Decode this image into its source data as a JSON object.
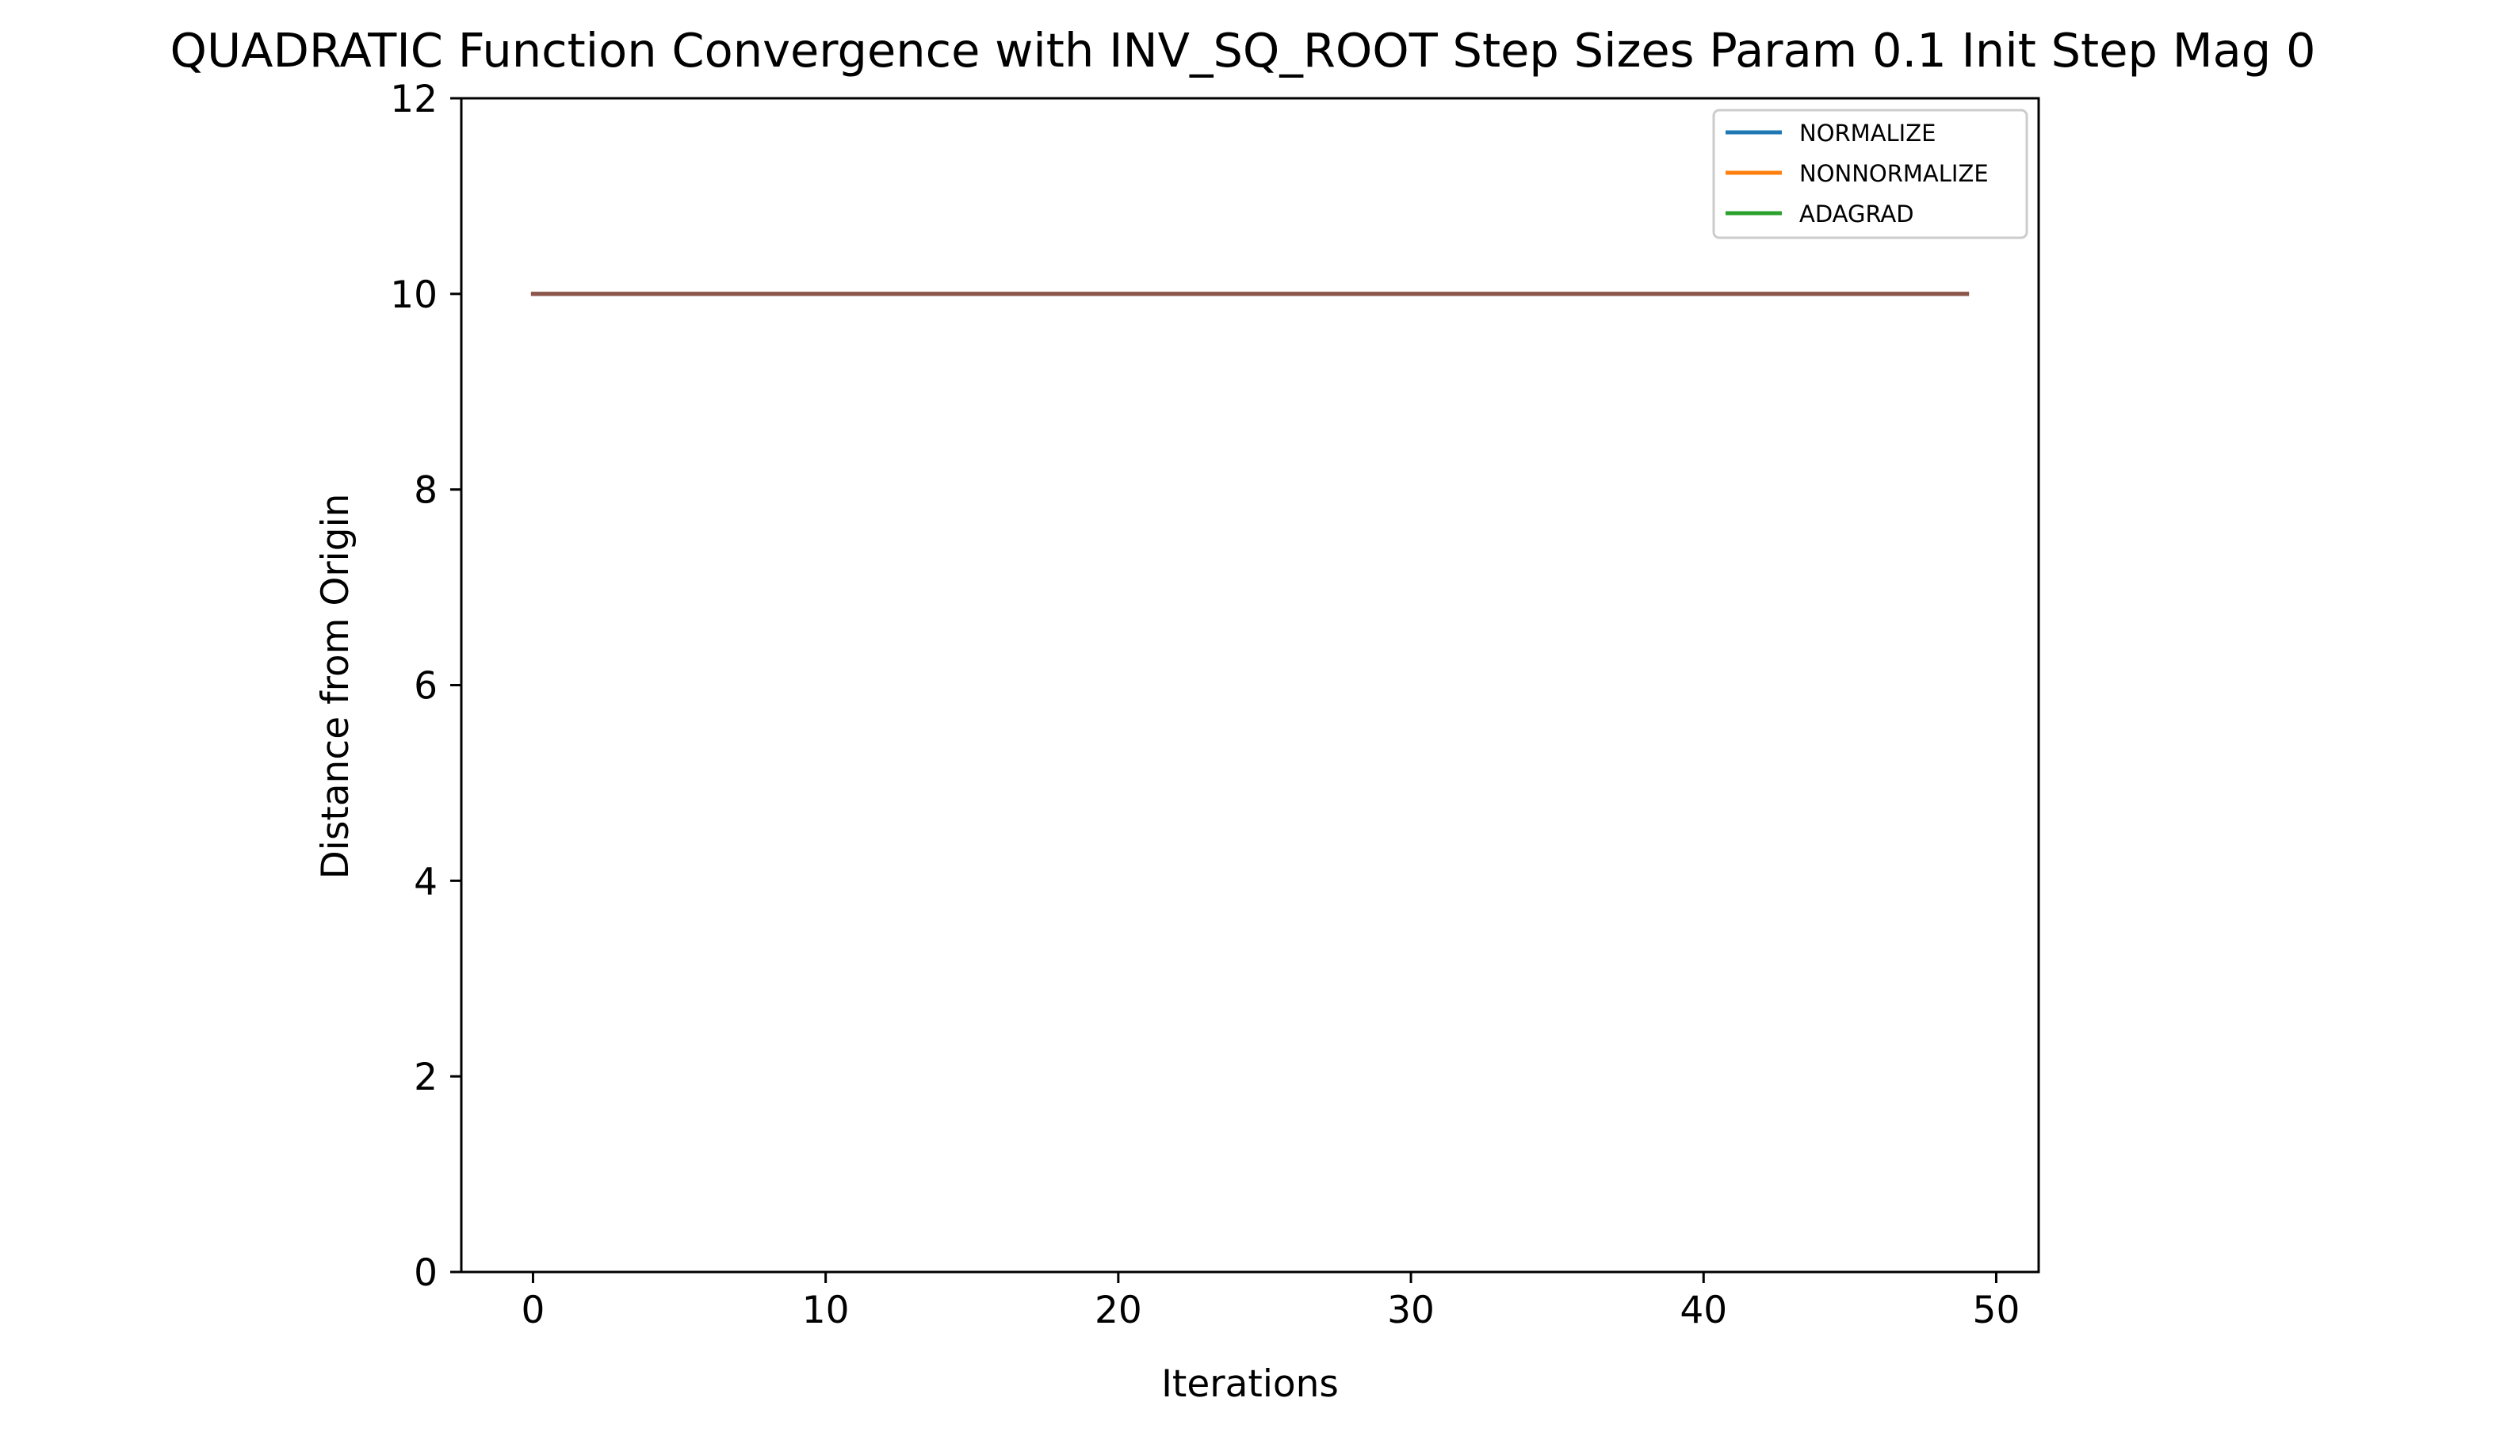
{
  "chart_data": {
    "type": "line",
    "title": "QUADRATIC Function Convergence with INV_SQ_ROOT Step Sizes Param 0.1 Init Step Mag 0",
    "xlabel": "Iterations",
    "ylabel": "Distance from Origin",
    "xlim": [
      -2.45,
      51.45
    ],
    "ylim": [
      0,
      12
    ],
    "xticks": [
      0,
      10,
      20,
      30,
      40,
      50
    ],
    "yticks": [
      0,
      2,
      4,
      6,
      8,
      10,
      12
    ],
    "grid": false,
    "legend_position": "upper right",
    "x": [
      0,
      1,
      2,
      3,
      4,
      5,
      6,
      7,
      8,
      9,
      10,
      11,
      12,
      13,
      14,
      15,
      16,
      17,
      18,
      19,
      20,
      21,
      22,
      23,
      24,
      25,
      26,
      27,
      28,
      29,
      30,
      31,
      32,
      33,
      34,
      35,
      36,
      37,
      38,
      39,
      40,
      41,
      42,
      43,
      44,
      45,
      46,
      47,
      48,
      49
    ],
    "series": [
      {
        "name": "NORMALIZE",
        "color": "#1f77b4",
        "constant": 10,
        "in_legend": true
      },
      {
        "name": "NONNORMALIZE",
        "color": "#ff7f0e",
        "constant": 10,
        "in_legend": true
      },
      {
        "name": "ADAGRAD",
        "color": "#2ca02c",
        "constant": 10,
        "in_legend": true
      },
      {
        "color": "#d62728",
        "constant": 10,
        "in_legend": false
      },
      {
        "color": "#9467bd",
        "constant": 10,
        "in_legend": false
      },
      {
        "color": "#8c564b",
        "constant": 10,
        "in_legend": false
      }
    ]
  }
}
